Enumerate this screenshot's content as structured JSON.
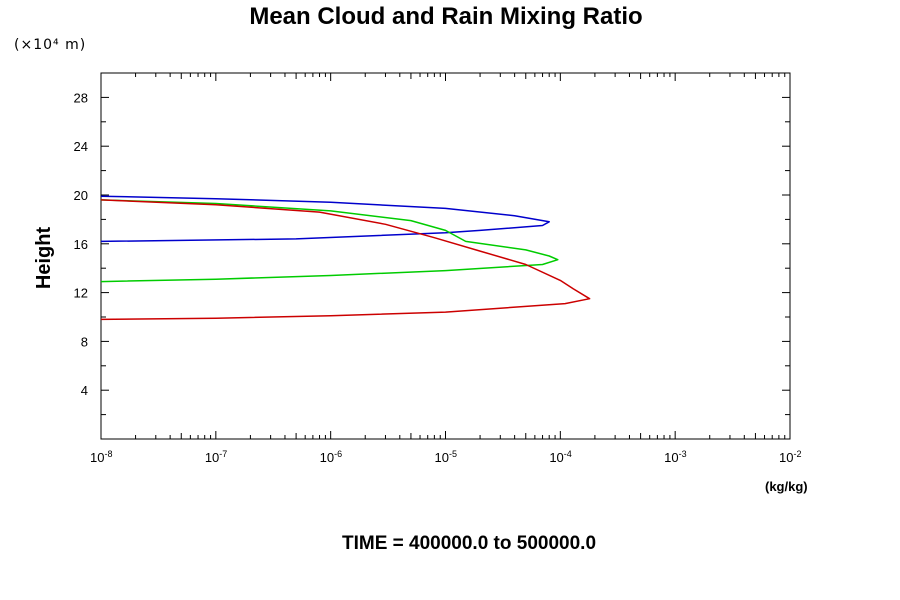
{
  "chart_data": {
    "type": "line",
    "title": "Mean Cloud and Rain Mixing Ratio",
    "y_scale_label": "(×10⁴ m)",
    "ylabel": "Height",
    "xlabel": "(kg/kg)",
    "footer": "TIME = 400000.0 to 500000.0",
    "xscale": "log",
    "xlim": [
      1e-08,
      0.01
    ],
    "ylim": [
      0,
      30
    ],
    "x_ticks": [
      {
        "base": "10",
        "exp": "-8",
        "value": 1e-08
      },
      {
        "base": "10",
        "exp": "-7",
        "value": 1e-07
      },
      {
        "base": "10",
        "exp": "-6",
        "value": 1e-06
      },
      {
        "base": "10",
        "exp": "-5",
        "value": 1e-05
      },
      {
        "base": "10",
        "exp": "-4",
        "value": 0.0001
      },
      {
        "base": "10",
        "exp": "-3",
        "value": 0.001
      },
      {
        "base": "10",
        "exp": "-2",
        "value": 0.01
      }
    ],
    "y_ticks": [
      4,
      8,
      12,
      16,
      20,
      24,
      28
    ],
    "grid": false,
    "series": [
      {
        "color": "#0000cc",
        "points": [
          [
            1e-08,
            19.9
          ],
          [
            1e-07,
            19.7
          ],
          [
            1e-06,
            19.4
          ],
          [
            1e-05,
            18.9
          ],
          [
            4e-05,
            18.3
          ],
          [
            8e-05,
            17.8
          ],
          [
            7e-05,
            17.5
          ],
          [
            2e-05,
            17.1
          ],
          [
            1e-05,
            16.9
          ],
          [
            5e-07,
            16.4
          ],
          [
            1e-08,
            16.2
          ]
        ]
      },
      {
        "color": "#00cc00",
        "points": [
          [
            1e-08,
            19.6
          ],
          [
            1e-07,
            19.3
          ],
          [
            1e-06,
            18.7
          ],
          [
            5e-06,
            17.9
          ],
          [
            1e-05,
            17.1
          ],
          [
            1.5e-05,
            16.2
          ],
          [
            5e-05,
            15.5
          ],
          [
            8e-05,
            15.0
          ],
          [
            9.5e-05,
            14.7
          ],
          [
            7e-05,
            14.3
          ],
          [
            1e-05,
            13.8
          ],
          [
            1e-06,
            13.4
          ],
          [
            1e-07,
            13.1
          ],
          [
            1e-08,
            12.9
          ]
        ]
      },
      {
        "color": "#cc0000",
        "points": [
          [
            1e-08,
            19.6
          ],
          [
            1e-07,
            19.2
          ],
          [
            8e-07,
            18.6
          ],
          [
            3e-06,
            17.6
          ],
          [
            8e-06,
            16.5
          ],
          [
            2e-05,
            15.4
          ],
          [
            5e-05,
            14.3
          ],
          [
            0.0001,
            13.0
          ],
          [
            0.00013,
            12.3
          ],
          [
            0.00018,
            11.5
          ],
          [
            0.00011,
            11.1
          ],
          [
            1e-05,
            10.4
          ],
          [
            1e-06,
            10.1
          ],
          [
            1e-07,
            9.9
          ],
          [
            1e-08,
            9.8
          ]
        ]
      }
    ]
  }
}
